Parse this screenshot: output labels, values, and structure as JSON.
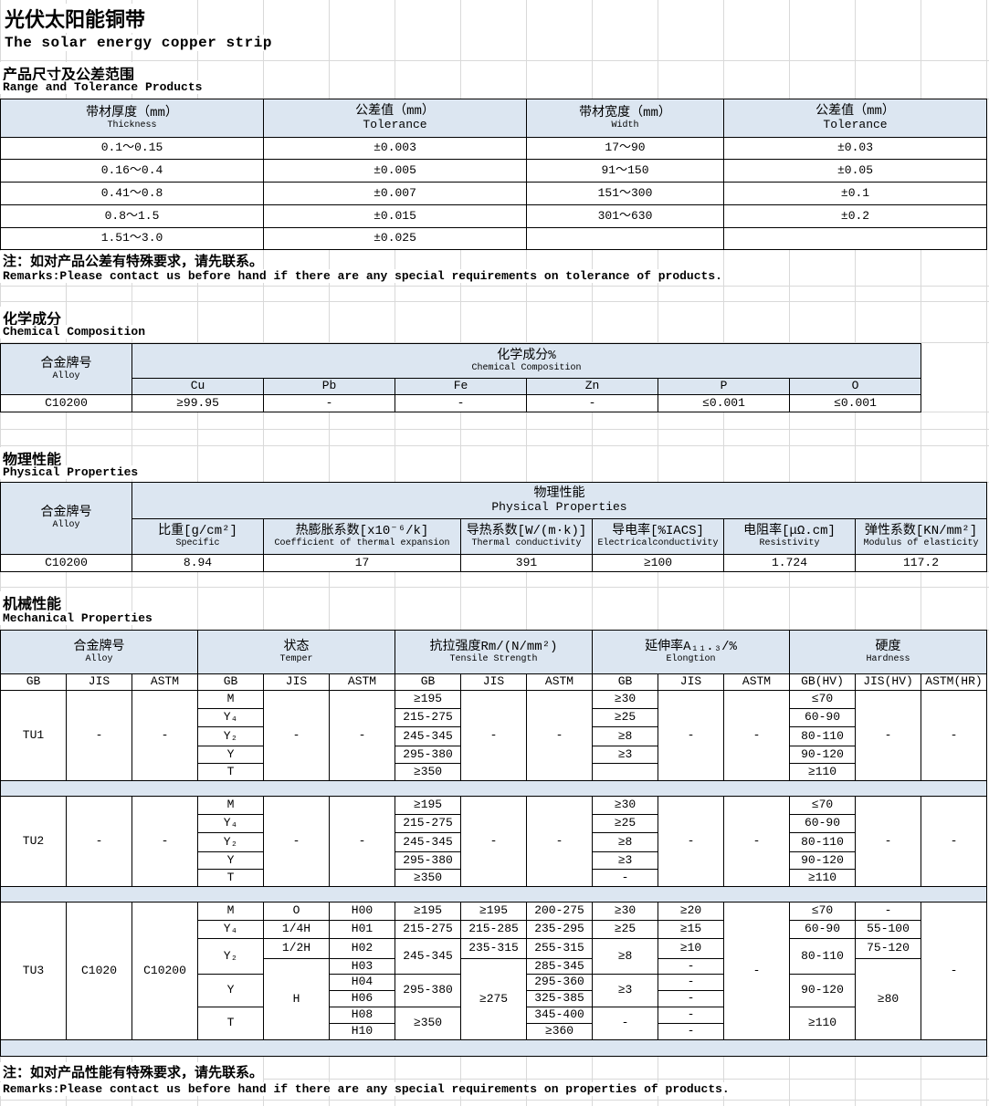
{
  "title": {
    "zh": "光伏太阳能铜带",
    "en": "The solar energy  copper strip"
  },
  "range": {
    "heading_zh": "产品尺寸及公差范围",
    "heading_en": "Range and Tolerance Products",
    "headers": [
      {
        "zh": "带材厚度（mm）",
        "en": "Thickness"
      },
      {
        "zh": "公差值（mm）",
        "en": "Tolerance"
      },
      {
        "zh": "带材宽度（mm）",
        "en": "Width"
      },
      {
        "zh": "公差值（mm）",
        "en": "Tolerance"
      }
    ],
    "rows": [
      [
        "0.1～0.15",
        "±0.003",
        "17～90",
        "±0.03"
      ],
      [
        "0.16～0.4",
        "±0.005",
        "91～150",
        "±0.05"
      ],
      [
        "0.41～0.8",
        "±0.007",
        "151～300",
        "±0.1"
      ],
      [
        "0.8～1.5",
        "±0.015",
        "301～630",
        "±0.2"
      ],
      [
        "1.51～3.0",
        "±0.025",
        "",
        ""
      ]
    ],
    "note_zh": "注：如对产品公差有特殊要求，请先联系。",
    "note_en": "Remarks:Please contact us before hand if there are any special requirements on tolerance of products."
  },
  "chemical": {
    "heading_zh": "化学成分",
    "heading_en": "Chemical Composition",
    "alloy_zh": "合金牌号",
    "alloy_en": "Alloy",
    "group_zh": "化学成分%",
    "group_en": "Chemical Composition",
    "elements": [
      "Cu",
      "Pb",
      "Fe",
      "Zn",
      "P",
      "O"
    ],
    "row": [
      "C10200",
      "≥99.95",
      "-",
      "-",
      "-",
      "≤0.001",
      "≤0.001"
    ]
  },
  "physical": {
    "heading_zh": "物理性能",
    "heading_en": "Physical Properties",
    "alloy_zh": "合金牌号",
    "alloy_en": "Alloy",
    "group_zh": "物理性能",
    "group_en": "Physical Properties",
    "props": [
      {
        "zh": "比重[g/cm²]",
        "en": "Specific"
      },
      {
        "zh": "热膨胀系数[x10⁻⁶/k]",
        "en": "Coefficient of thermal expansion"
      },
      {
        "zh": "导热系数[W/(m·k)]",
        "en": "Thermal conductivity"
      },
      {
        "zh": "导电率[%IACS]",
        "en": "Electricalconductivity"
      },
      {
        "zh": "电阻率[μΩ.cm]",
        "en": "Resistivity"
      },
      {
        "zh": "弹性系数[KN/mm²]",
        "en": "Modulus of elasticity"
      }
    ],
    "row": [
      "C10200",
      "8.94",
      "17",
      "391",
      "≥100",
      "1.724",
      "117.2"
    ]
  },
  "mechanical": {
    "heading_zh": "机械性能",
    "heading_en": "Mechanical Properties",
    "groups": [
      {
        "zh": "合金牌号",
        "en": "Alloy"
      },
      {
        "zh": "状态",
        "en": "Temper"
      },
      {
        "zh": "抗拉强度Rm/(N/mm²)",
        "en": "Tensile Strength"
      },
      {
        "zh": "延伸率A₁₁.₃/%",
        "en": "Elongtion"
      },
      {
        "zh": "硬度",
        "en": "Hardness"
      }
    ],
    "subheaders": [
      "GB",
      "JIS",
      "ASTM",
      "GB",
      "JIS",
      "ASTM",
      "GB",
      "JIS",
      "ASTM",
      "GB",
      "JIS",
      "ASTM",
      "GB(HV)",
      "JIS(HV)",
      "ASTM(HR)"
    ],
    "tu1": {
      "alloy": [
        "TU1",
        "-",
        "-"
      ],
      "temper_gb": [
        "M",
        "Y₄",
        "Y₂",
        "Y",
        "T"
      ],
      "temper_jis": "-",
      "temper_astm": "-",
      "tensile_gb": [
        "≥195",
        "215-275",
        "245-345",
        "295-380",
        "≥350"
      ],
      "tensile_jis": "-",
      "tensile_astm": "-",
      "elong_gb": [
        "≥30",
        "≥25",
        "≥8",
        "≥3",
        ""
      ],
      "elong_jis": "-",
      "elong_astm": "-",
      "hard_gb": [
        "≤70",
        "60-90",
        "80-110",
        "90-120",
        "≥110"
      ],
      "hard_jis": "-",
      "hard_astm": "-"
    },
    "tu2": {
      "alloy": [
        "TU2",
        "-",
        "-"
      ],
      "temper_gb": [
        "M",
        "Y₄",
        "Y₂",
        "Y",
        "T"
      ],
      "temper_jis": "-",
      "temper_astm": "-",
      "tensile_gb": [
        "≥195",
        "215-275",
        "245-345",
        "295-380",
        "≥350"
      ],
      "tensile_jis": "-",
      "tensile_astm": "-",
      "elong_gb": [
        "≥30",
        "≥25",
        "≥8",
        "≥3",
        "-"
      ],
      "elong_jis": "-",
      "elong_astm": "-",
      "hard_gb": [
        "≤70",
        "60-90",
        "80-110",
        "90-120",
        "≥110"
      ],
      "hard_jis": "-",
      "hard_astm": "-"
    },
    "tu3": {
      "alloy": [
        "TU3",
        "C1020",
        "C10200"
      ],
      "temper_gb": [
        "M",
        "Y₄",
        "Y₂",
        "Y",
        "T"
      ],
      "temper_jis": [
        "O",
        "1/4H",
        "1/2H",
        "H"
      ],
      "temper_astm": [
        "H00",
        "H01",
        "H02",
        "H03",
        "H04",
        "H06",
        "H08",
        "H10"
      ],
      "tensile_gb": [
        "≥195",
        "215-275",
        "245-345",
        "295-380",
        "≥350"
      ],
      "tensile_jis": [
        "≥195",
        "215-285",
        "235-315",
        "≥275"
      ],
      "tensile_astm": [
        "200-275",
        "235-295",
        "255-315",
        "285-345",
        "295-360",
        "325-385",
        "345-400",
        "≥360"
      ],
      "elong_gb": [
        "≥30",
        "≥25",
        "≥8",
        "≥3",
        "-"
      ],
      "elong_jis": [
        "≥20",
        "≥15",
        "≥10",
        "-",
        "-",
        "-",
        "-",
        "-"
      ],
      "elong_astm": "-",
      "hard_gb": [
        "≤70",
        "60-90",
        "80-110",
        "90-120",
        "≥110"
      ],
      "hard_jis": [
        "-",
        "55-100",
        "75-120",
        "≥80"
      ],
      "hard_astm": "-"
    },
    "note_zh": "注：如对产品性能有特殊要求，请先联系。",
    "note_en": "Remarks:Please contact us before hand if there are any special requirements on properties of products."
  }
}
